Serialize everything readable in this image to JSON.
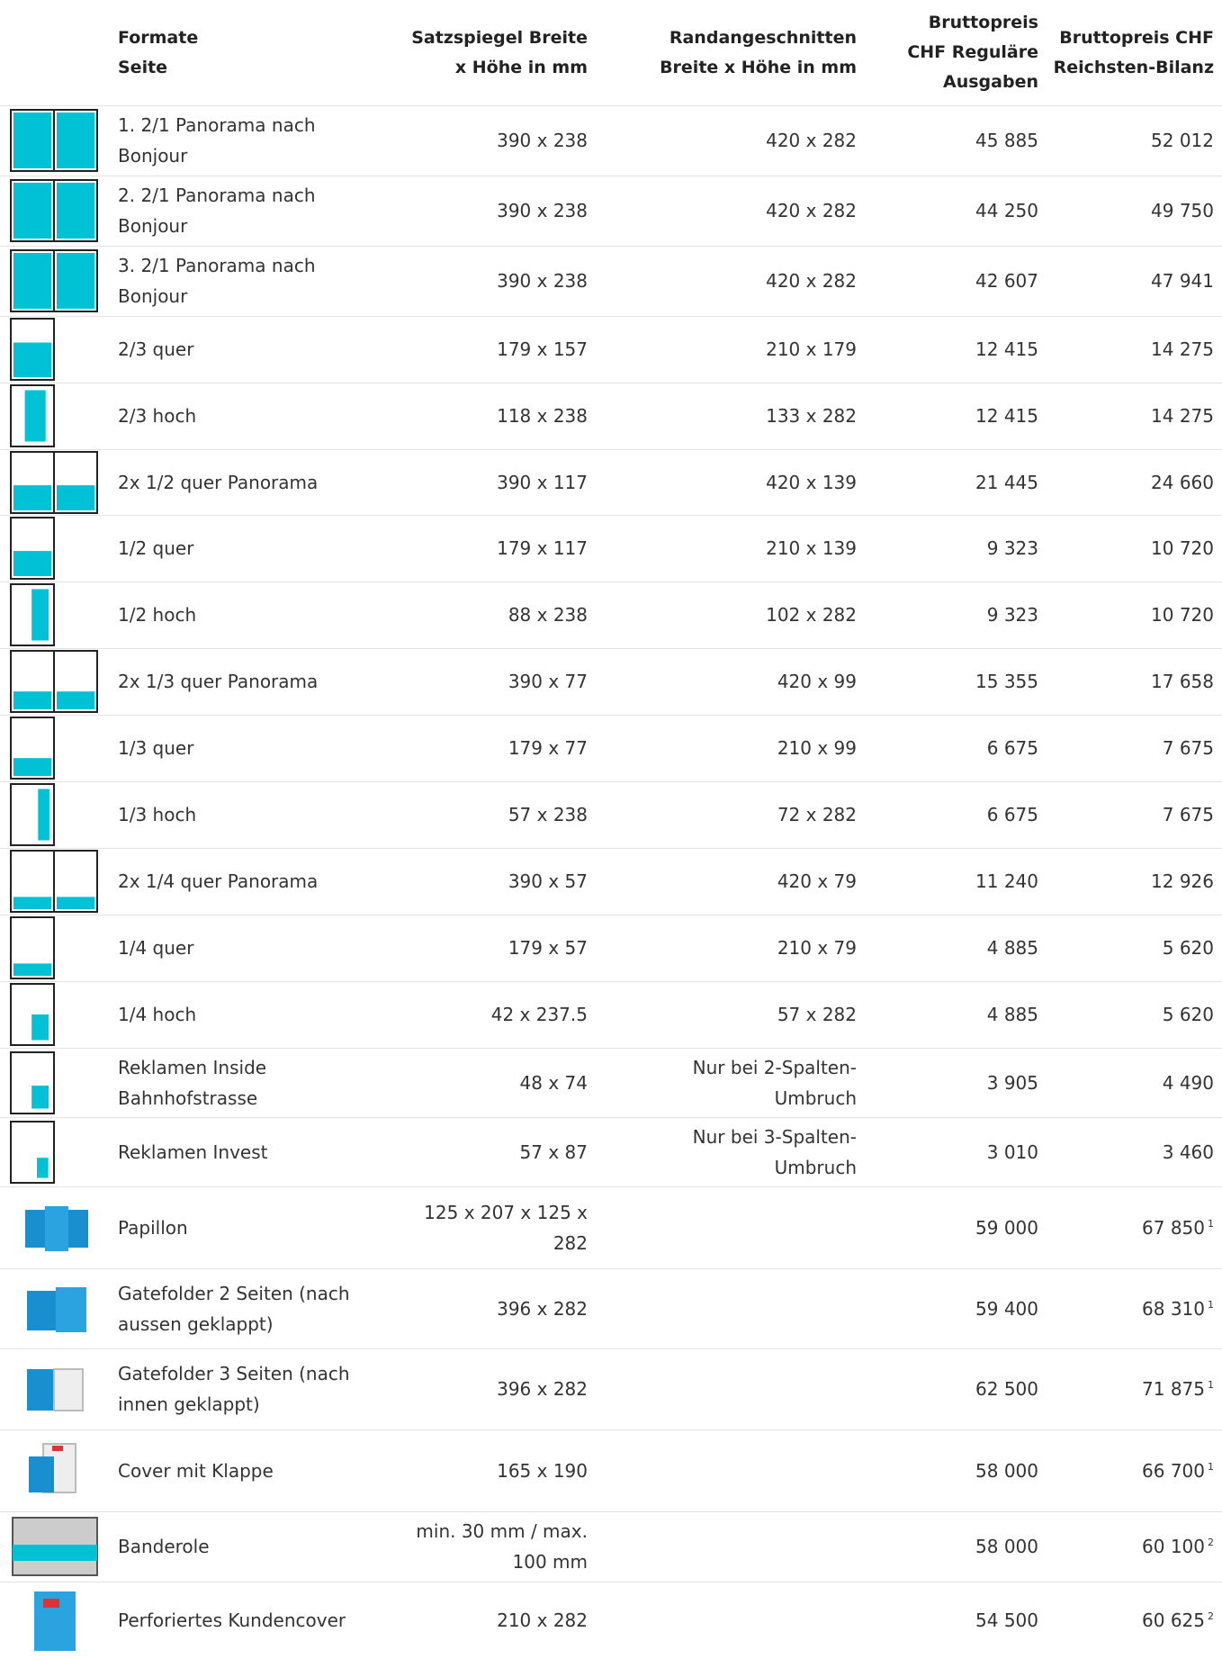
{
  "table": {
    "header": [
      "Formate Seite",
      "Satzspiegel Breite x Höhe in mm",
      "Randangeschnitten Breite x Höhe in mm",
      "Bruttopreis CHF Reguläre Ausgaben",
      "Bruttopreis CHF Reichsten-Bilanz"
    ],
    "rows": [
      {
        "format": "1. 2/1 Panorama nach Bonjour",
        "satzspiegel": "390 x 238",
        "rand": "420 x 282",
        "regular": "45 885",
        "reichsten": "52 012"
      },
      {
        "format": "2. 2/1 Panorama nach Bonjour",
        "satzspiegel": "390 x 238",
        "rand": "420 x 282",
        "regular": "44 250",
        "reichsten": "49 750"
      },
      {
        "format": "3. 2/1 Panorama nach Bonjour",
        "satzspiegel": "390 x 238",
        "rand": "420 x 282",
        "regular": "42 607",
        "reichsten": "47 941"
      },
      {
        "format": "2/3 quer",
        "satzspiegel": "179 x 157",
        "rand": "210 x 179",
        "regular": "12 415",
        "reichsten": "14 275"
      },
      {
        "format": "2/3 hoch",
        "satzspiegel": "118 x 238",
        "rand": "133 x 282",
        "regular": "12 415",
        "reichsten": "14 275"
      },
      {
        "format": "2x 1/2 quer Panorama",
        "satzspiegel": "390 x 117",
        "rand": "420 x 139",
        "regular": "21 445",
        "reichsten": "24 660"
      },
      {
        "format": "1/2 quer",
        "satzspiegel": "179 x 117",
        "rand": "210 x 139",
        "regular": "9 323",
        "reichsten": "10 720"
      },
      {
        "format": "1/2 hoch",
        "satzspiegel": "88 x 238",
        "rand": "102 x 282",
        "regular": "9 323",
        "reichsten": "10 720"
      },
      {
        "format": "2x 1/3 quer Panorama",
        "satzspiegel": "390 x 77",
        "rand": "420 x 99",
        "regular": "15 355",
        "reichsten": "17 658"
      },
      {
        "format": "1/3 quer",
        "satzspiegel": "179 x 77",
        "rand": "210 x 99",
        "regular": "6 675",
        "reichsten": "7 675"
      },
      {
        "format": "1/3 hoch",
        "satzspiegel": "57 x 238",
        "rand": "72 x 282",
        "regular": "6 675",
        "reichsten": "7 675"
      },
      {
        "format": "2x 1/4 quer Panorama",
        "satzspiegel": "390 x 57",
        "rand": "420 x 79",
        "regular": "11 240",
        "reichsten": "12 926"
      },
      {
        "format": "1/4 quer",
        "satzspiegel": "179 x 57",
        "rand": "210 x 79",
        "regular": "4 885",
        "reichsten": "5 620"
      },
      {
        "format": "1/4 hoch",
        "satzspiegel": "42 x 237.5",
        "rand": "57 x 282",
        "regular": "4 885",
        "reichsten": "5 620"
      },
      {
        "format": "Reklamen Inside Bahnhofstrasse",
        "satzspiegel": "48 x 74",
        "rand": "Nur bei 2-Spalten-Umbruch",
        "regular": "3 905",
        "reichsten": "4 490"
      },
      {
        "format": "Reklamen Invest",
        "satzspiegel": "57 x 87",
        "rand": "Nur bei 3-Spalten-Umbruch",
        "regular": "3 010",
        "reichsten": "3 460"
      },
      {
        "format": "Papillon",
        "satzspiegel": "125 x 207 x 125 x 282",
        "regular": "59 000",
        "reichsten": "67 850",
        "note": "1"
      },
      {
        "format": "Gatefolder 2 Seiten (nach aussen geklappt)",
        "satzspiegel": "396 x 282",
        "regular": "59 400",
        "reichsten": "68 310",
        "note": "1"
      },
      {
        "format": "Gatefolder 3 Seiten (nach innen geklappt)",
        "satzspiegel": "396 x 282",
        "regular": "62 500",
        "reichsten": "71 875",
        "note": "1"
      },
      {
        "format": "Cover mit Klappe",
        "satzspiegel": "165 x 190",
        "regular": "58 000",
        "reichsten": "66 700",
        "note": "1"
      },
      {
        "format": "Banderole",
        "satzspiegel": "min. 30 mm / max. 100 mm",
        "regular": "58 000",
        "reichsten": "60 100",
        "note": "2"
      },
      {
        "format": "Perforiertes Kundencover",
        "satzspiegel": "210 x 282",
        "regular": "54 500",
        "reichsten": "60 625",
        "note": "2"
      }
    ]
  }
}
